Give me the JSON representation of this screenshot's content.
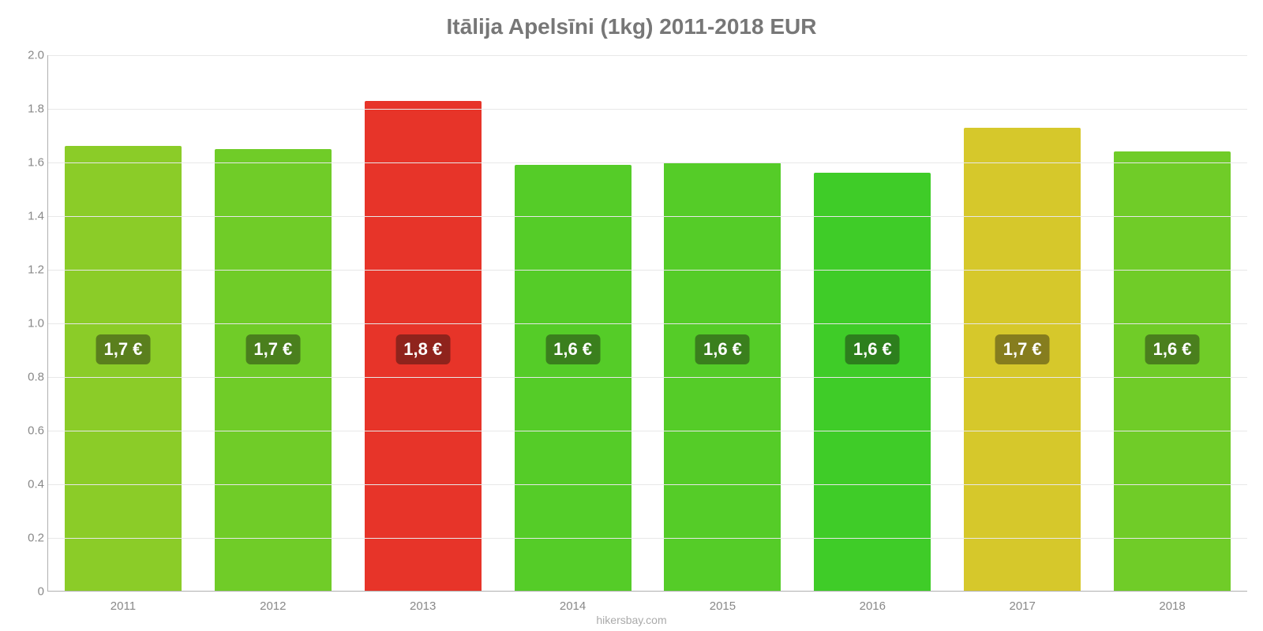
{
  "chart": {
    "type": "bar",
    "title": "Itālija Apelsīni (1kg) 2011-2018 EUR",
    "title_fontsize": 28,
    "title_color": "#777777",
    "attribution": "hikersbay.com",
    "background_color": "#ffffff",
    "grid_color": "#e8e8e8",
    "axis_color": "#b0b0b0",
    "tick_color": "#888888",
    "tick_fontsize": 15,
    "ylim": [
      0,
      2.0
    ],
    "ytick_step": 0.2,
    "yticks": [
      "0",
      "0.2",
      "0.4",
      "0.6",
      "0.8",
      "1.0",
      "1.2",
      "1.4",
      "1.6",
      "1.8",
      "2.0"
    ],
    "bar_width_pct": 78,
    "label_fontsize": 22,
    "label_y_value": 0.9,
    "categories": [
      "2011",
      "2012",
      "2013",
      "2014",
      "2015",
      "2016",
      "2017",
      "2018"
    ],
    "values": [
      1.66,
      1.65,
      1.83,
      1.59,
      1.6,
      1.56,
      1.73,
      1.64
    ],
    "display_labels": [
      "1,7 €",
      "1,7 €",
      "1,8 €",
      "1,6 €",
      "1,6 €",
      "1,6 €",
      "1,7 €",
      "1,6 €"
    ],
    "bar_colors": [
      "#8bcc28",
      "#70cc28",
      "#e73429",
      "#55cc28",
      "#55cc28",
      "#3fcc28",
      "#d6c82b",
      "#70cc28"
    ],
    "label_bg_colors": [
      "#5a7f1d",
      "#4a7f1d",
      "#8f231c",
      "#3a7f1d",
      "#3a7f1d",
      "#2d7f1d",
      "#867d1e",
      "#4a7f1d"
    ],
    "label_text_color": "#ffffff"
  }
}
